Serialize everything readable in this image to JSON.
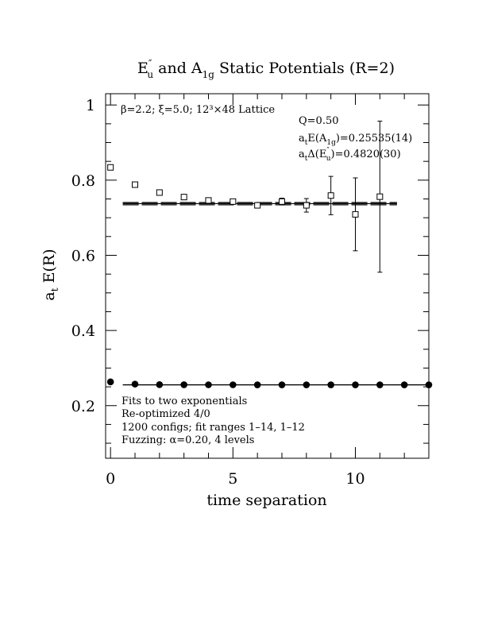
{
  "chart_data": {
    "type": "scatter",
    "title": "E″u and A1g Static Potentials (R=2)",
    "title_parts": {
      "a": "E",
      "a_sup": "″",
      "a_sub": "u",
      "b": " and A",
      "b_sub": "1g",
      "c": " Static Potentials (R=2)"
    },
    "xlabel": "time separation",
    "ylabel_parts": {
      "a": "a",
      "a_sub": "t",
      "b": " E(R)"
    },
    "xlim": [
      -0.2,
      13
    ],
    "ylim": [
      0.06,
      1.03
    ],
    "x_ticks": [
      0,
      5,
      10
    ],
    "y_ticks": [
      0.2,
      0.4,
      0.6,
      0.8,
      1
    ],
    "y_tick_labels": [
      "0.2",
      "0.4",
      "0.6",
      "0.8",
      "1"
    ],
    "grid": false,
    "header_note": "β=2.2; ξ=5.0; 12³×48 Lattice",
    "fit_info": {
      "q": "Q=0.50",
      "a1g": {
        "a": "a",
        "a_sub": "t",
        "b": "E(A",
        "b_sub": "1g",
        "c": ")=0.25535(14)"
      },
      "eu": {
        "a": "a",
        "a_sub": "t",
        "b": "Δ(E",
        "b_sup": "″",
        "b_sub": "u",
        "c": ")=0.4820(30)"
      }
    },
    "notes": [
      "Fits to two exponentials",
      "Re-optimized 4/0",
      "1200 configs; fit ranges 1–14, 1–12",
      "Fuzzing: α=0.20, 4 levels"
    ],
    "series": [
      {
        "marker": "open-square",
        "x": [
          0,
          1,
          2,
          3,
          4,
          5,
          6,
          7,
          8,
          9,
          10,
          11
        ],
        "y": [
          0.834,
          0.788,
          0.767,
          0.755,
          0.746,
          0.743,
          0.733,
          0.743,
          0.733,
          0.759,
          0.709,
          0.756
        ],
        "yerr": [
          0.002,
          0.002,
          0.002,
          0.002,
          0.004,
          0.004,
          0.005,
          0.009,
          0.018,
          0.051,
          0.097,
          0.201
        ]
      },
      {
        "marker": "filled-circle",
        "x": [
          0,
          1,
          2,
          3,
          4,
          5,
          6,
          7,
          8,
          9,
          10,
          11,
          12,
          13
        ],
        "y": [
          0.2632,
          0.2573,
          0.2558,
          0.2556,
          0.2555,
          0.2555,
          0.2554,
          0.2554,
          0.2554,
          0.2554,
          0.2554,
          0.2554,
          0.2554,
          0.2554
        ]
      }
    ],
    "fit_lines": [
      {
        "x_range": [
          0.5,
          11.7
        ],
        "y": 0.7374,
        "y_err": 0.003
      },
      {
        "x_range": [
          0.5,
          13
        ],
        "y": 0.25535
      }
    ]
  }
}
